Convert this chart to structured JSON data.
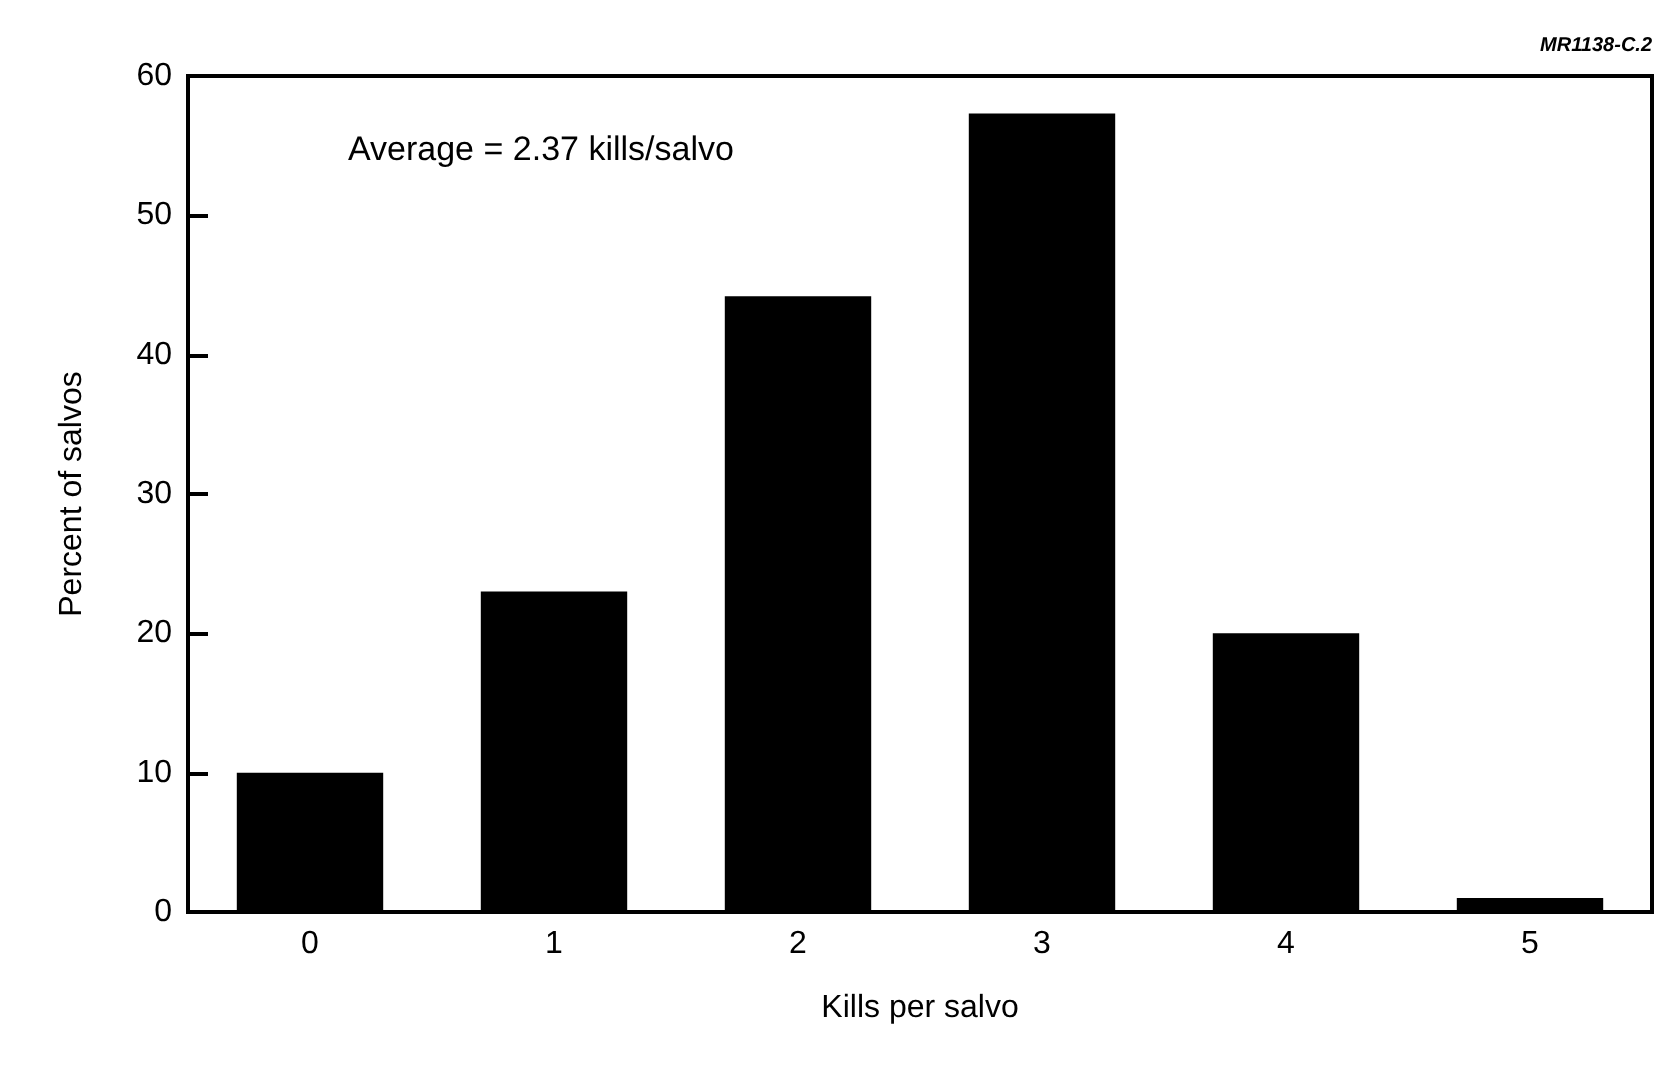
{
  "chart_data": {
    "type": "bar",
    "xlabel": "Kills per salvo",
    "ylabel": "Percent of salvos",
    "categories": [
      "0",
      "1",
      "2",
      "3",
      "4",
      "5"
    ],
    "values": [
      10,
      23,
      44.2,
      57.3,
      20,
      1
    ],
    "color": "#000000",
    "ylim": [
      0,
      60
    ],
    "yticks": [
      0,
      10,
      20,
      30,
      40,
      50,
      60
    ],
    "grid": false,
    "annotations": [
      "Average = 2.37 kills/salvo",
      "MR1138-C.2"
    ]
  }
}
